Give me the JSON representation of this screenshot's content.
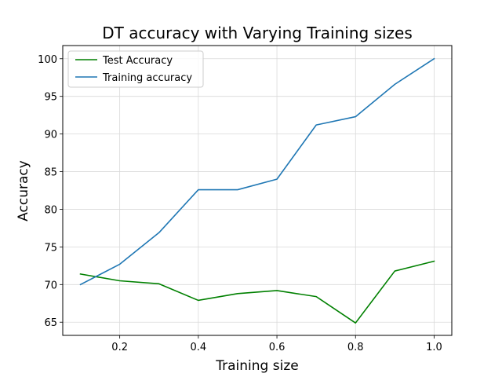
{
  "chart_data": {
    "type": "line",
    "title": "DT accuracy with Varying Training sizes",
    "xlabel": "Training size",
    "ylabel": "Accuracy",
    "x": [
      0.1,
      0.2,
      0.3,
      0.4,
      0.5,
      0.6,
      0.7,
      0.8,
      0.9,
      1.0
    ],
    "xlim": [
      0.055,
      1.045
    ],
    "ylim": [
      63.25,
      101.75
    ],
    "xticks": [
      0.2,
      0.4,
      0.6,
      0.8,
      1.0
    ],
    "xtick_labels": [
      "0.2",
      "0.4",
      "0.6",
      "0.8",
      "1.0"
    ],
    "yticks": [
      65,
      70,
      75,
      80,
      85,
      90,
      95,
      100
    ],
    "ytick_labels": [
      "65",
      "70",
      "75",
      "80",
      "85",
      "90",
      "95",
      "100"
    ],
    "grid": true,
    "legend_position": "upper-left",
    "series": [
      {
        "name": "Test Accuracy",
        "color": "#008000",
        "values": [
          71.4,
          70.5,
          70.1,
          67.9,
          68.8,
          69.2,
          68.4,
          64.9,
          71.8,
          73.1
        ]
      },
      {
        "name": "Training accuracy",
        "color": "#1f77b4",
        "values": [
          70.0,
          72.7,
          76.9,
          82.6,
          82.6,
          84.0,
          91.2,
          92.3,
          96.6,
          100.0
        ]
      }
    ]
  }
}
